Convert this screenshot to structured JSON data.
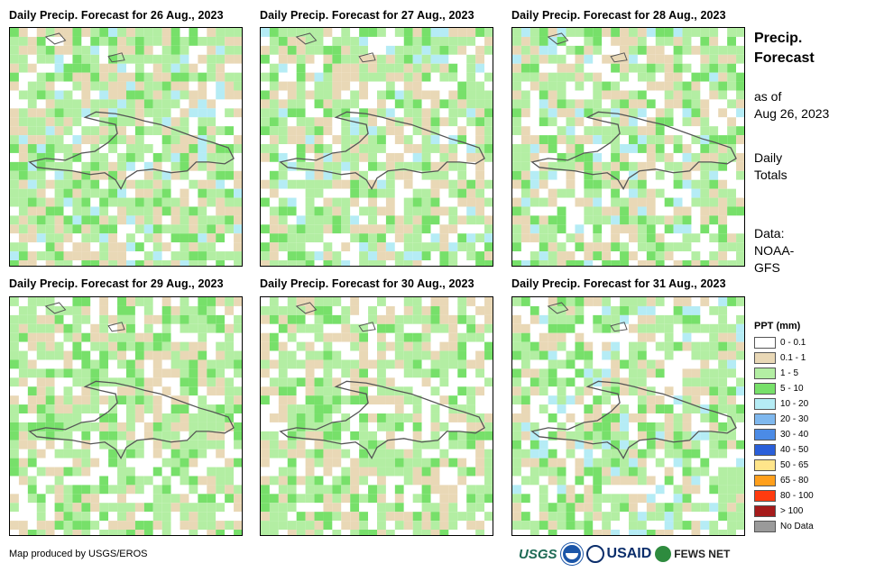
{
  "panels": [
    {
      "title": "Daily Precip. Forecast for 26 Aug., 2023",
      "seed": 11,
      "wet": 0.9
    },
    {
      "title": "Daily Precip. Forecast for 27 Aug., 2023",
      "seed": 23,
      "wet": 0.6
    },
    {
      "title": "Daily Precip. Forecast for 28 Aug., 2023",
      "seed": 37,
      "wet": 0.55
    },
    {
      "title": "Daily Precip. Forecast for 29 Aug., 2023",
      "seed": 41,
      "wet": 0.35
    },
    {
      "title": "Daily Precip. Forecast for 30 Aug., 2023",
      "seed": 53,
      "wet": 0.3
    },
    {
      "title": "Daily Precip. Forecast for 31 Aug., 2023",
      "seed": 67,
      "wet": 0.55
    }
  ],
  "side": {
    "title_line1": "Precip.",
    "title_line2": "Forecast",
    "asof_line1": "as of",
    "asof_line2": "Aug 26, 2023",
    "daily_line1": "Daily",
    "daily_line2": "Totals",
    "data_line1": "Data:",
    "data_line2": "NOAA-",
    "data_line3": "GFS"
  },
  "legend": {
    "title": "PPT (mm)",
    "items": [
      {
        "label": "0 - 0.1",
        "color": "#ffffff"
      },
      {
        "label": "0.1 - 1",
        "color": "#e9d8b6"
      },
      {
        "label": "1 - 5",
        "color": "#b3eea3"
      },
      {
        "label": "5 - 10",
        "color": "#77e06a"
      },
      {
        "label": "10 - 20",
        "color": "#b5ecf5"
      },
      {
        "label": "20 - 30",
        "color": "#7fb8ee"
      },
      {
        "label": "30 - 40",
        "color": "#4b8be6"
      },
      {
        "label": "40 - 50",
        "color": "#2a5fd9"
      },
      {
        "label": "50 - 65",
        "color": "#ffe58a"
      },
      {
        "label": "65 - 80",
        "color": "#ff9f1c"
      },
      {
        "label": "80 - 100",
        "color": "#ff3b0f"
      },
      {
        "label": "> 100",
        "color": "#a61b1b"
      },
      {
        "label": "No Data",
        "color": "#9a9a9a"
      }
    ]
  },
  "credit": "Map produced by USGS/EROS",
  "logos": {
    "usgs": "USGS",
    "usaid": "USAID",
    "fews": "FEWS NET"
  }
}
